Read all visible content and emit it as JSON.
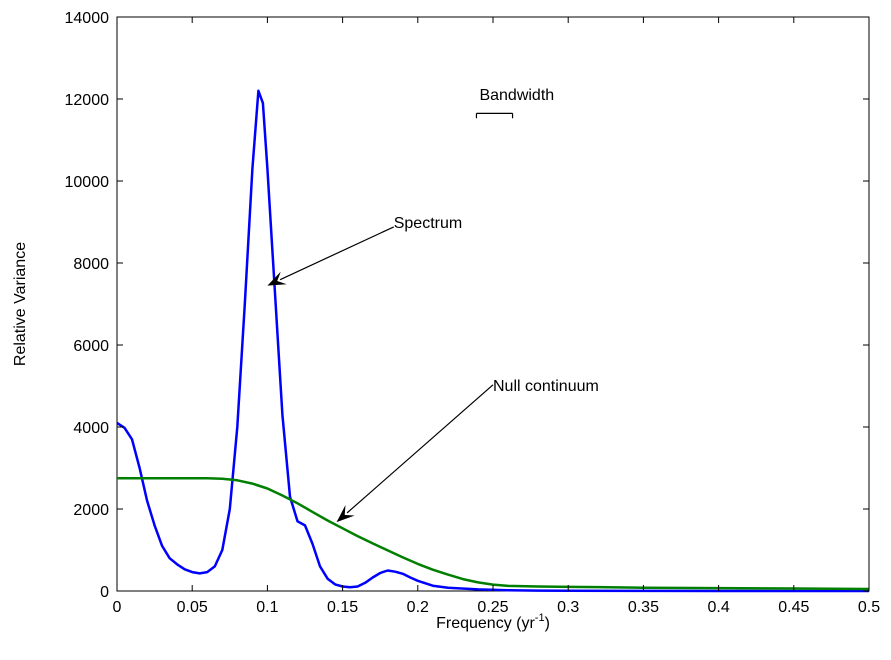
{
  "chart_data": {
    "type": "line",
    "title": "",
    "xlabel": "Frequency (yr",
    "xlabel_sup": "-1",
    "xlabel_close": ")",
    "ylabel": "Relative Variance",
    "xlim": [
      0,
      0.5
    ],
    "ylim": [
      0,
      14000
    ],
    "grid": false,
    "x_ticks": [
      0,
      0.05,
      0.1,
      0.15,
      0.2,
      0.25,
      0.3,
      0.35,
      0.4,
      0.45,
      0.5
    ],
    "x_tick_labels": [
      "0",
      "0.05",
      "0.1",
      "0.15",
      "0.2",
      "0.25",
      "0.3",
      "0.35",
      "0.4",
      "0.45",
      "0.5"
    ],
    "y_ticks": [
      0,
      2000,
      4000,
      6000,
      8000,
      10000,
      12000,
      14000
    ],
    "y_tick_labels": [
      "0",
      "2000",
      "4000",
      "6000",
      "8000",
      "10000",
      "12000",
      "14000"
    ],
    "series": [
      {
        "color": "#0000ff",
        "points": [
          [
            0,
            4100
          ],
          [
            0.005,
            3980
          ],
          [
            0.01,
            3700
          ],
          [
            0.015,
            3000
          ],
          [
            0.02,
            2200
          ],
          [
            0.025,
            1600
          ],
          [
            0.03,
            1100
          ],
          [
            0.035,
            800
          ],
          [
            0.04,
            650
          ],
          [
            0.045,
            530
          ],
          [
            0.05,
            460
          ],
          [
            0.055,
            430
          ],
          [
            0.06,
            460
          ],
          [
            0.065,
            600
          ],
          [
            0.07,
            1000
          ],
          [
            0.075,
            2000
          ],
          [
            0.08,
            4000
          ],
          [
            0.085,
            7000
          ],
          [
            0.09,
            10300
          ],
          [
            0.094,
            12200
          ],
          [
            0.097,
            11900
          ],
          [
            0.1,
            10300
          ],
          [
            0.105,
            7300
          ],
          [
            0.11,
            4300
          ],
          [
            0.115,
            2300
          ],
          [
            0.12,
            1700
          ],
          [
            0.125,
            1600
          ],
          [
            0.13,
            1150
          ],
          [
            0.135,
            600
          ],
          [
            0.14,
            300
          ],
          [
            0.145,
            160
          ],
          [
            0.15,
            110
          ],
          [
            0.155,
            90
          ],
          [
            0.16,
            110
          ],
          [
            0.165,
            200
          ],
          [
            0.17,
            330
          ],
          [
            0.175,
            440
          ],
          [
            0.18,
            500
          ],
          [
            0.185,
            470
          ],
          [
            0.19,
            420
          ],
          [
            0.195,
            330
          ],
          [
            0.2,
            250
          ],
          [
            0.21,
            130
          ],
          [
            0.22,
            80
          ],
          [
            0.24,
            40
          ],
          [
            0.26,
            20
          ],
          [
            0.28,
            10
          ],
          [
            0.3,
            5
          ],
          [
            0.35,
            2
          ],
          [
            0.4,
            1
          ],
          [
            0.45,
            0
          ],
          [
            0.5,
            0
          ]
        ]
      },
      {
        "color": "#007f00",
        "points": [
          [
            0,
            2750
          ],
          [
            0.02,
            2750
          ],
          [
            0.04,
            2750
          ],
          [
            0.06,
            2750
          ],
          [
            0.07,
            2740
          ],
          [
            0.08,
            2700
          ],
          [
            0.09,
            2620
          ],
          [
            0.1,
            2500
          ],
          [
            0.11,
            2330
          ],
          [
            0.12,
            2140
          ],
          [
            0.13,
            1930
          ],
          [
            0.14,
            1720
          ],
          [
            0.15,
            1530
          ],
          [
            0.16,
            1340
          ],
          [
            0.17,
            1160
          ],
          [
            0.18,
            990
          ],
          [
            0.19,
            820
          ],
          [
            0.2,
            660
          ],
          [
            0.21,
            520
          ],
          [
            0.22,
            400
          ],
          [
            0.23,
            290
          ],
          [
            0.24,
            210
          ],
          [
            0.25,
            155
          ],
          [
            0.26,
            125
          ],
          [
            0.28,
            110
          ],
          [
            0.3,
            100
          ],
          [
            0.32,
            95
          ],
          [
            0.35,
            80
          ],
          [
            0.4,
            70
          ],
          [
            0.45,
            60
          ],
          [
            0.5,
            50
          ]
        ]
      }
    ],
    "annotations": [
      {
        "text": "Bandwidth",
        "x": 0.241,
        "y": 11980
      },
      {
        "text": "Spectrum",
        "x": 0.184,
        "y": 8850
      },
      {
        "text": "Null continuum",
        "x": 0.25,
        "y": 4880
      }
    ],
    "arrows": [
      {
        "from": [
          0.184,
          8880
        ],
        "to": [
          0.1,
          7450
        ]
      },
      {
        "from": [
          0.25,
          5030
        ],
        "to": [
          0.146,
          1680
        ]
      }
    ],
    "bandwidth_bar": {
      "x0": 0.239,
      "x1": 0.263,
      "y": 11650,
      "cap": 120
    }
  }
}
